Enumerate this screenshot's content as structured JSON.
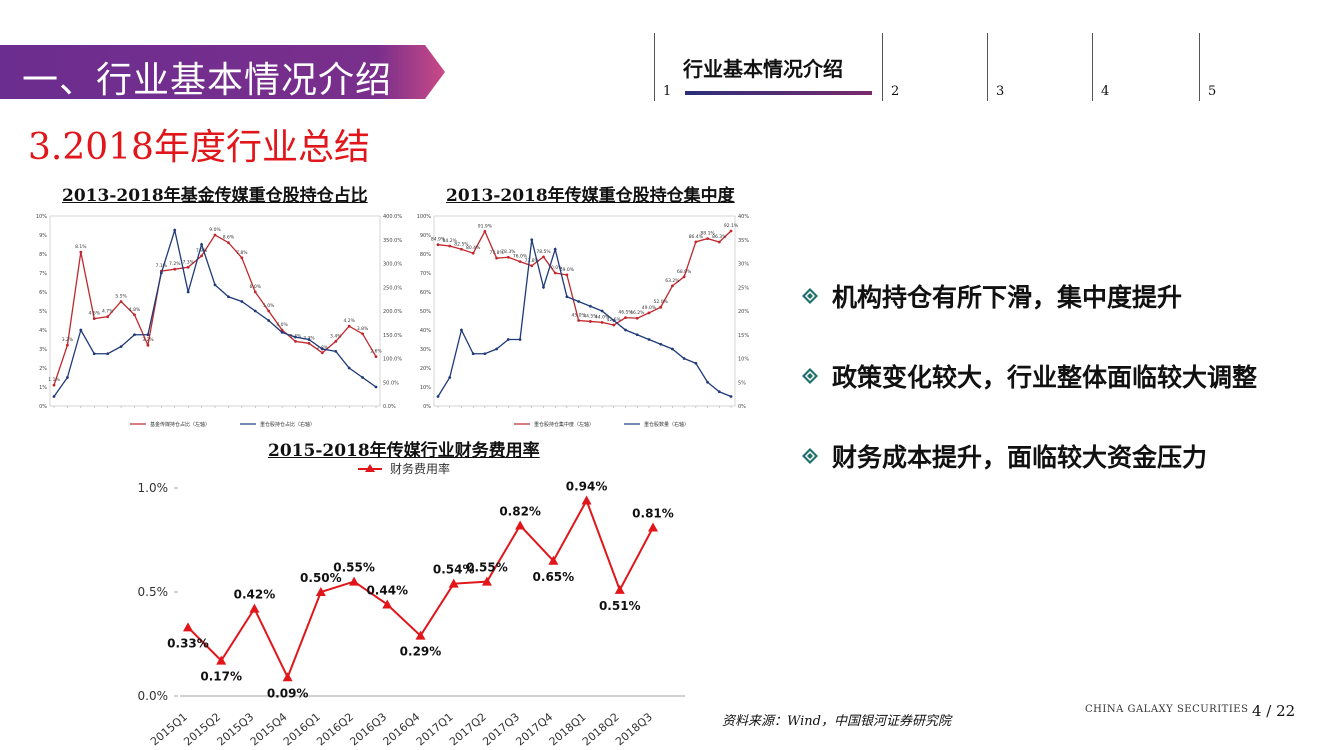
{
  "header": {
    "banner_title": "一、行业基本情况介绍",
    "colors": {
      "banner": "#6b2d8f",
      "banner_edge": "#c94a86"
    }
  },
  "nav": {
    "items": [
      {
        "label": "行业基本情况介绍",
        "number": "1"
      },
      {
        "label": "",
        "number": "2"
      },
      {
        "label": "",
        "number": "3"
      },
      {
        "label": "",
        "number": "4"
      },
      {
        "label": "",
        "number": "5"
      }
    ]
  },
  "section_title": "3.2018年度行业总结",
  "charts": {
    "left_title": "2013-2018年基金传媒重仓股持仓占比",
    "right_title": "2013-2018年传媒重仓股持仓集中度",
    "bottom_title": "2015-2018年传媒行业财务费用率"
  },
  "bullets": [
    "机构持仓有所下滑，集中度提升",
    "政策变化较大，行业整体面临较大调整",
    "财务成本提升，面临较大资金压力"
  ],
  "footer": {
    "source": "资料来源：Wind，中国银河证券研究院",
    "brand": "CHINA GALAXY SECURITIES",
    "page": "4 / 22"
  },
  "chart_data": [
    {
      "type": "line",
      "id": "holding-ratio",
      "title": "2013-2018年基金传媒重仓股持仓占比",
      "series": [
        {
          "name": "基金传媒持仓占比（左轴）",
          "color": "#c0282d",
          "values": [
            1.1,
            3.2,
            8.1,
            4.6,
            4.7,
            5.5,
            4.8,
            3.2,
            7.1,
            7.2,
            7.3,
            7.9,
            9.0,
            8.6,
            7.8,
            6.0,
            5.0,
            4.0,
            3.4,
            3.3,
            2.8,
            3.4,
            4.2,
            3.8,
            2.6
          ]
        },
        {
          "name": "重仓股持仓占比（右轴）",
          "color": "#1f3a78",
          "values": [
            20,
            60,
            160,
            110,
            110,
            125,
            150,
            150,
            280,
            370,
            240,
            340,
            255,
            230,
            220,
            200,
            180,
            155,
            145,
            140,
            120,
            115,
            80,
            60,
            40
          ]
        }
      ],
      "left_axis": {
        "min": 0,
        "max": 10,
        "ticks": [
          "0%",
          "1%",
          "2%",
          "3%",
          "4%",
          "5%",
          "6%",
          "7%",
          "8%",
          "9%",
          "10%"
        ]
      },
      "right_axis": {
        "min": 0,
        "max": 400,
        "ticks": [
          "0.0%",
          "50.0%",
          "100.0%",
          "150.0%",
          "200.0%",
          "250.0%",
          "300.0%",
          "350.0%",
          "400.0%"
        ]
      },
      "data_labels": [
        "1.1%",
        "3.2%",
        "8.1%",
        "4.6%",
        "4.7%",
        "5.5%",
        "4.8%",
        "3.2%",
        "7.1%",
        "7.2%",
        "7.3%",
        "7.9%",
        "9.0%",
        "8.6%",
        "7.8%",
        "6.0%",
        "5.0%",
        "4.0%",
        "3.4%",
        "3.3%",
        "2.8%",
        "3.4%",
        "4.2%",
        "3.8%",
        "2.6%"
      ]
    },
    {
      "type": "line",
      "id": "concentration",
      "title": "2013-2018年传媒重仓股持仓集中度",
      "series": [
        {
          "name": "重仓股持仓集中度（左轴）",
          "color": "#c0282d",
          "values": [
            84.9,
            84.2,
            82.5,
            80.4,
            91.9,
            77.8,
            78.3,
            76.0,
            73.8,
            78.5,
            70.0,
            69.0,
            45.0,
            44.5,
            44.0,
            42.6,
            46.5,
            46.2,
            49.0,
            52.0,
            63.2,
            68.0,
            86.4,
            88.1,
            86.3,
            92.1
          ]
        },
        {
          "name": "重仓股数量（右轴）",
          "color": "#1f3a78",
          "values": [
            2,
            6,
            16,
            11,
            11,
            12,
            14,
            14,
            35,
            25,
            33,
            23,
            22,
            21,
            20,
            18,
            16,
            15,
            14,
            13,
            12,
            10,
            9,
            5,
            3,
            2
          ]
        }
      ],
      "left_axis": {
        "min": 0,
        "max": 100,
        "ticks": [
          "0%",
          "10%",
          "20%",
          "30%",
          "40%",
          "50%",
          "60%",
          "70%",
          "80%",
          "90%",
          "100%"
        ]
      },
      "right_axis": {
        "min": 0,
        "max": 40,
        "ticks": [
          "0%",
          "5%",
          "10%",
          "15%",
          "20%",
          "25%",
          "30%",
          "35%",
          "40%"
        ]
      },
      "data_labels": [
        "84.9%",
        "84.2%",
        "82.5%",
        "80.4%",
        "91.9%",
        "77.8%",
        "78.3%",
        "76.0%",
        "73.8%",
        "78.5%",
        "70.0%",
        "69.0%",
        "45.0%",
        "44.5%",
        "44.0%",
        "42.6%",
        "46.5%",
        "46.2%",
        "49.0%",
        "52.0%",
        "63.2%",
        "68.0%",
        "86.4%",
        "88.1%",
        "86.3%",
        "92.1%"
      ]
    },
    {
      "type": "line",
      "id": "finance-cost",
      "title": "2015-2018年传媒行业财务费用率",
      "legend": "财务费用率",
      "color": "#e0161b",
      "categories": [
        "2015Q1",
        "2015Q2",
        "2015Q3",
        "2015Q4",
        "2016Q1",
        "2016Q2",
        "2016Q3",
        "2016Q4",
        "2017Q1",
        "2017Q2",
        "2017Q3",
        "2017Q4",
        "2018Q1",
        "2018Q2",
        "2018Q3"
      ],
      "values": [
        0.33,
        0.17,
        0.42,
        0.09,
        0.5,
        0.55,
        0.44,
        0.29,
        0.54,
        0.55,
        0.82,
        0.65,
        0.94,
        0.51,
        0.81
      ],
      "labels": [
        "0.33%",
        "0.17%",
        "0.42%",
        "0.09%",
        "0.50%",
        "0.55%",
        "0.44%",
        "0.29%",
        "0.54%",
        "0.55%",
        "0.82%",
        "0.65%",
        "0.94%",
        "0.51%",
        "0.81%"
      ],
      "y_ticks": [
        "0.0%",
        "0.5%",
        "1.0%"
      ],
      "ylim": [
        0,
        1.0
      ]
    }
  ]
}
